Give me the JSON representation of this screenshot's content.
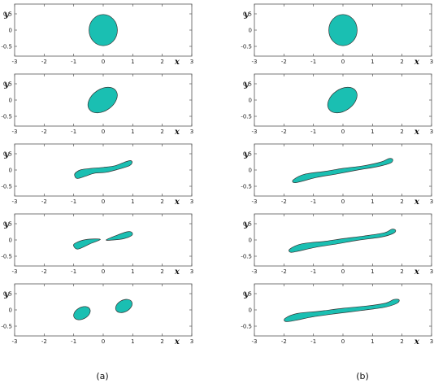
{
  "chart_data": {
    "type": "shape-evolution",
    "fill_color": "#1abfb2",
    "edge_color": "#333333",
    "xlim": [
      -3,
      3
    ],
    "ylim": [
      -0.8,
      0.8
    ],
    "xticks": [
      -3,
      -2,
      -1,
      0,
      1,
      2,
      3
    ],
    "yticks": [
      0.5,
      0,
      -0.5
    ],
    "xlabel": "x",
    "ylabel": "y",
    "columns": [
      {
        "caption": "(a)",
        "panels": [
          {
            "shapes": [
              {
                "kind": "ellipse",
                "cx": 0,
                "cy": 0,
                "rx": 0.48,
                "ry": 0.48,
                "angle": 0
              }
            ]
          },
          {
            "shapes": [
              {
                "kind": "ellipse",
                "cx": -0.02,
                "cy": 0,
                "rx": 0.55,
                "ry": 0.33,
                "angle": 35
              }
            ]
          },
          {
            "shapes": [
              {
                "kind": "outline",
                "points": [
                  [
                    -0.92,
                    -0.07
                  ],
                  [
                    -0.75,
                    0.01
                  ],
                  [
                    -0.4,
                    0.05
                  ],
                  [
                    0,
                    0.08
                  ],
                  [
                    0.4,
                    0.13
                  ],
                  [
                    0.72,
                    0.24
                  ],
                  [
                    0.92,
                    0.29
                  ],
                  [
                    0.98,
                    0.23
                  ],
                  [
                    0.88,
                    0.13
                  ],
                  [
                    0.5,
                    0.02
                  ],
                  [
                    0.1,
                    -0.07
                  ],
                  [
                    -0.3,
                    -0.1
                  ],
                  [
                    -0.6,
                    -0.19
                  ],
                  [
                    -0.88,
                    -0.26
                  ],
                  [
                    -0.97,
                    -0.16
                  ]
                ]
              }
            ]
          },
          {
            "shapes": [
              {
                "kind": "outline",
                "points": [
                  [
                    -0.95,
                    -0.1
                  ],
                  [
                    -0.6,
                    0.01
                  ],
                  [
                    -0.1,
                    0.02
                  ],
                  [
                    -0.45,
                    -0.12
                  ],
                  [
                    -0.85,
                    -0.28
                  ],
                  [
                    -1.0,
                    -0.19
                  ]
                ]
              },
              {
                "kind": "outline",
                "points": [
                  [
                    0.1,
                    0.0
                  ],
                  [
                    0.45,
                    0.14
                  ],
                  [
                    0.8,
                    0.25
                  ],
                  [
                    0.96,
                    0.24
                  ],
                  [
                    0.97,
                    0.14
                  ],
                  [
                    0.7,
                    0.04
                  ],
                  [
                    0.35,
                    0.0
                  ]
                ]
              }
            ]
          },
          {
            "shapes": [
              {
                "kind": "ellipse",
                "cx": -0.72,
                "cy": -0.1,
                "rx": 0.3,
                "ry": 0.18,
                "angle": 28
              },
              {
                "kind": "ellipse",
                "cx": 0.7,
                "cy": 0.12,
                "rx": 0.3,
                "ry": 0.18,
                "angle": 28
              }
            ]
          }
        ]
      },
      {
        "caption": "(b)",
        "panels": [
          {
            "shapes": [
              {
                "kind": "ellipse",
                "cx": 0,
                "cy": 0,
                "rx": 0.48,
                "ry": 0.48,
                "angle": 0
              }
            ]
          },
          {
            "shapes": [
              {
                "kind": "ellipse",
                "cx": -0.02,
                "cy": 0,
                "rx": 0.55,
                "ry": 0.33,
                "angle": 35
              }
            ]
          },
          {
            "shapes": [
              {
                "kind": "outline",
                "points": [
                  [
                    -1.68,
                    -0.3
                  ],
                  [
                    -1.3,
                    -0.13
                  ],
                  [
                    -0.6,
                    -0.04
                  ],
                  [
                    0,
                    0.05
                  ],
                  [
                    0.7,
                    0.13
                  ],
                  [
                    1.3,
                    0.25
                  ],
                  [
                    1.55,
                    0.35
                  ],
                  [
                    1.68,
                    0.33
                  ],
                  [
                    1.62,
                    0.22
                  ],
                  [
                    1.2,
                    0.11
                  ],
                  [
                    0.5,
                    0.0
                  ],
                  [
                    -0.2,
                    -0.12
                  ],
                  [
                    -0.9,
                    -0.23
                  ],
                  [
                    -1.45,
                    -0.36
                  ],
                  [
                    -1.66,
                    -0.39
                  ]
                ]
              }
            ]
          },
          {
            "shapes": [
              {
                "kind": "outline",
                "points": [
                  [
                    -1.8,
                    -0.28
                  ],
                  [
                    -1.4,
                    -0.12
                  ],
                  [
                    -0.6,
                    -0.04
                  ],
                  [
                    0,
                    0.04
                  ],
                  [
                    0.7,
                    0.12
                  ],
                  [
                    1.4,
                    0.22
                  ],
                  [
                    1.65,
                    0.33
                  ],
                  [
                    1.78,
                    0.3
                  ],
                  [
                    1.7,
                    0.2
                  ],
                  [
                    1.3,
                    0.09
                  ],
                  [
                    0.5,
                    -0.01
                  ],
                  [
                    -0.2,
                    -0.12
                  ],
                  [
                    -0.9,
                    -0.22
                  ],
                  [
                    -1.5,
                    -0.34
                  ],
                  [
                    -1.77,
                    -0.38
                  ]
                ]
              }
            ]
          },
          {
            "shapes": [
              {
                "kind": "outline",
                "points": [
                  [
                    -1.96,
                    -0.26
                  ],
                  [
                    -1.55,
                    -0.11
                  ],
                  [
                    -0.8,
                    -0.04
                  ],
                  [
                    0,
                    0.05
                  ],
                  [
                    0.8,
                    0.12
                  ],
                  [
                    1.45,
                    0.21
                  ],
                  [
                    1.72,
                    0.32
                  ],
                  [
                    1.9,
                    0.31
                  ],
                  [
                    1.82,
                    0.2
                  ],
                  [
                    1.4,
                    0.08
                  ],
                  [
                    0.6,
                    -0.02
                  ],
                  [
                    -0.2,
                    -0.11
                  ],
                  [
                    -1.0,
                    -0.21
                  ],
                  [
                    -1.6,
                    -0.32
                  ],
                  [
                    -1.93,
                    -0.36
                  ]
                ]
              }
            ]
          }
        ]
      }
    ]
  }
}
